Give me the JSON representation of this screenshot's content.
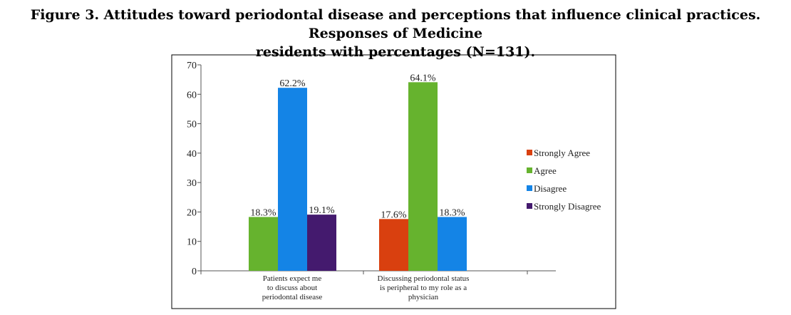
{
  "caption": {
    "line1": "Figure 3. Attitudes toward periodontal disease and perceptions that influence clinical practices. Responses of Medicine",
    "line2": "residents with percentages (N=131)."
  },
  "chart_data": {
    "type": "bar",
    "title": "",
    "xlabel": "",
    "ylabel": "",
    "ylim": [
      0,
      70
    ],
    "yticks": [
      "0",
      "10",
      "20",
      "30",
      "40",
      "50",
      "60",
      "70"
    ],
    "grid": false,
    "legend_position": "right",
    "categories": [
      [
        "Patients expect me",
        "to discuss about",
        "periodontal disease"
      ],
      [
        "Discussing periodontal status",
        "is peripheral to my role as a",
        "physician"
      ]
    ],
    "series": [
      {
        "name": "Strongly Agree",
        "color": "#d9400f",
        "values": [
          null,
          17.6
        ],
        "labels": [
          "",
          "17.6%"
        ]
      },
      {
        "name": "Agree",
        "color": "#66b32e",
        "values": [
          18.3,
          64.1
        ],
        "labels": [
          "18.3%",
          "64.1%"
        ]
      },
      {
        "name": "Disagree",
        "color": "#1484e6",
        "values": [
          62.2,
          18.3
        ],
        "labels": [
          "62.2%",
          "18.3%"
        ]
      },
      {
        "name": "Strongly Disagree",
        "color": "#441a6e",
        "values": [
          19.1,
          null
        ],
        "labels": [
          "19.1%",
          ""
        ]
      }
    ]
  }
}
